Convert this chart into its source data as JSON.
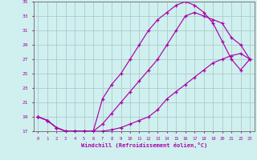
{
  "xlabel": "Windchill (Refroidissement éolien,°C)",
  "bg_color": "#cff0ee",
  "grid_color": "#aacccc",
  "line_color": "#aa00aa",
  "xlim": [
    -0.5,
    23.5
  ],
  "ylim": [
    17,
    35
  ],
  "yticks": [
    17,
    19,
    21,
    23,
    25,
    27,
    29,
    31,
    33,
    35
  ],
  "xticks": [
    0,
    1,
    2,
    3,
    4,
    5,
    6,
    7,
    8,
    9,
    10,
    11,
    12,
    13,
    14,
    15,
    16,
    17,
    18,
    19,
    20,
    21,
    22,
    23
  ],
  "line1_x": [
    0,
    1,
    2,
    3,
    4,
    5,
    6,
    7,
    8,
    9,
    10,
    11,
    12,
    13,
    14,
    15,
    16,
    17,
    18,
    19,
    20,
    21,
    22,
    23
  ],
  "line1_y": [
    19.0,
    18.5,
    17.5,
    17.0,
    17.0,
    17.0,
    17.0,
    17.0,
    17.2,
    17.5,
    18.0,
    18.5,
    19.0,
    20.0,
    21.5,
    22.5,
    23.5,
    24.5,
    25.5,
    26.5,
    27.0,
    27.5,
    27.8,
    27.0
  ],
  "line2_x": [
    0,
    1,
    2,
    3,
    4,
    5,
    6,
    7,
    8,
    9,
    10,
    11,
    12,
    13,
    14,
    15,
    16,
    17,
    18,
    19,
    20,
    21,
    22,
    23
  ],
  "line2_y": [
    19.0,
    18.5,
    17.5,
    17.0,
    17.0,
    17.0,
    17.0,
    18.0,
    19.5,
    21.0,
    22.5,
    24.0,
    25.5,
    27.0,
    29.0,
    31.0,
    33.0,
    33.5,
    33.0,
    32.5,
    32.0,
    30.0,
    29.0,
    27.0
  ],
  "line3_x": [
    0,
    1,
    2,
    3,
    4,
    5,
    6,
    7,
    8,
    9,
    10,
    11,
    12,
    13,
    14,
    15,
    16,
    17,
    18,
    19,
    20,
    21,
    22,
    23
  ],
  "line3_y": [
    19.0,
    18.5,
    17.5,
    17.0,
    17.0,
    17.0,
    17.0,
    21.5,
    23.5,
    25.0,
    27.0,
    29.0,
    31.0,
    32.5,
    33.5,
    34.5,
    35.0,
    34.5,
    33.5,
    32.0,
    29.5,
    27.0,
    25.5,
    27.0
  ]
}
